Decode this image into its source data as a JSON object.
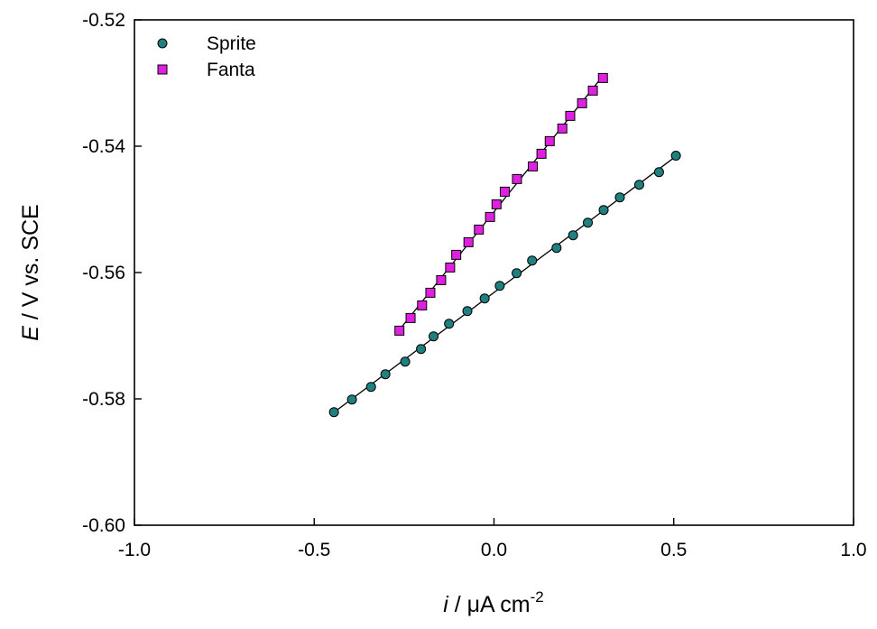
{
  "chart_data": {
    "type": "scatter",
    "xlabel": {
      "italic": "i",
      "rest": " / μA cm",
      "sup": "-2"
    },
    "ylabel": {
      "italic": "E",
      "rest": " / V vs. SCE"
    },
    "xlim": [
      -1.0,
      1.0
    ],
    "ylim": [
      -0.6,
      -0.52
    ],
    "xticks": [
      -1.0,
      -0.5,
      0.0,
      0.5,
      1.0
    ],
    "xtick_labels": [
      "-1.0",
      "-0.5",
      "0.0",
      "0.5",
      "1.0"
    ],
    "yticks": [
      -0.6,
      -0.58,
      -0.56,
      -0.54,
      -0.52
    ],
    "ytick_labels": [
      "-0.60",
      "-0.58",
      "-0.56",
      "-0.54",
      "-0.52"
    ],
    "grid": false,
    "legend": "top-left",
    "series": [
      {
        "name": "Sprite",
        "marker": "circle",
        "color": "#1f8080",
        "fit_line": true,
        "x": [
          -0.445,
          -0.395,
          -0.342,
          -0.302,
          -0.247,
          -0.203,
          -0.168,
          -0.125,
          -0.074,
          -0.026,
          0.016,
          0.063,
          0.106,
          0.174,
          0.22,
          0.261,
          0.305,
          0.35,
          0.404,
          0.459,
          0.506
        ],
        "y": [
          -0.5821,
          -0.5801,
          -0.5781,
          -0.5761,
          -0.5741,
          -0.5721,
          -0.5701,
          -0.5681,
          -0.5661,
          -0.5641,
          -0.5621,
          -0.5601,
          -0.5581,
          -0.5561,
          -0.5541,
          -0.5521,
          -0.5501,
          -0.5481,
          -0.5461,
          -0.5441,
          -0.5415
        ]
      },
      {
        "name": "Fanta",
        "marker": "square",
        "color": "#e020e0",
        "fit_line": true,
        "x": [
          -0.263,
          -0.232,
          -0.2,
          -0.177,
          -0.147,
          -0.122,
          -0.105,
          -0.071,
          -0.042,
          -0.011,
          0.007,
          0.03,
          0.064,
          0.108,
          0.132,
          0.155,
          0.19,
          0.212,
          0.245,
          0.275,
          0.303
        ],
        "y": [
          -0.5692,
          -0.5672,
          -0.5652,
          -0.5632,
          -0.5612,
          -0.5592,
          -0.5572,
          -0.5552,
          -0.5532,
          -0.5512,
          -0.5492,
          -0.5472,
          -0.5452,
          -0.5432,
          -0.5412,
          -0.5392,
          -0.5372,
          -0.5352,
          -0.5332,
          -0.5312,
          -0.5292
        ]
      }
    ]
  }
}
